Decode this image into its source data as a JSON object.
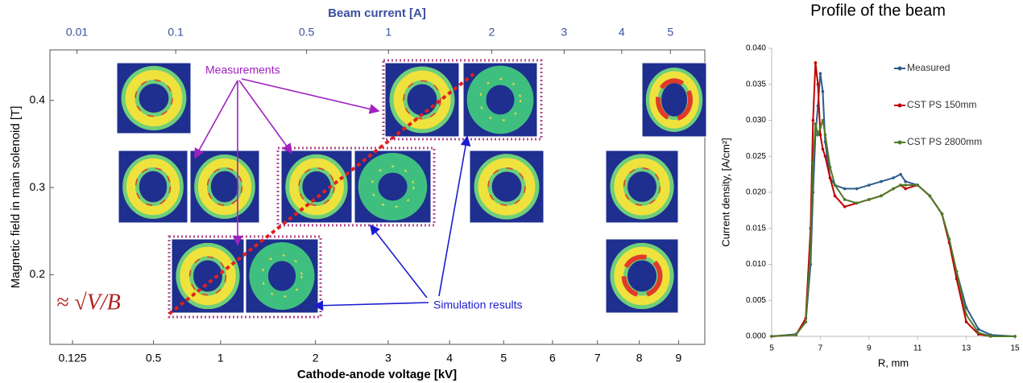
{
  "chart_data": [
    {
      "type": "image",
      "xlabel": "Cathode-anode voltage [kV]",
      "x2label": "Beam current [A]",
      "ylabel": "Magnetic field in main solenoid [T]",
      "xscale": "sqrt",
      "x2scale": "cbrt",
      "xlim": [
        0.065,
        9.7
      ],
      "x2lim": [
        0.0032,
        5.8
      ],
      "ylim": [
        0.12,
        0.458
      ],
      "xticks": [
        0.125,
        0.5,
        1,
        2,
        3,
        4,
        5,
        6,
        7,
        8,
        9
      ],
      "x2ticks": [
        0.01,
        0.1,
        0.5,
        1,
        2,
        3,
        4,
        5
      ],
      "yticks": [
        0.2,
        0.3,
        0.4
      ],
      "annotations": [
        "Measurements",
        "Simulation results",
        "≈ √V/B"
      ]
    },
    {
      "type": "line",
      "title": "Profile of the beam",
      "xlabel": "R, mm",
      "ylabel": "Current density, [A/cm²]",
      "xlim": [
        5,
        15
      ],
      "ylim": [
        0,
        0.04
      ],
      "xticks": [
        5,
        7,
        9,
        11,
        13,
        15
      ],
      "yticks": [
        {
          "value": 0,
          "label": "0.000"
        },
        {
          "value": 0.005,
          "label": "0.005"
        },
        {
          "value": 0.01,
          "label": "0.010"
        },
        {
          "value": 0.015,
          "label": "0.015"
        },
        {
          "value": 0.02,
          "label": "0.020"
        },
        {
          "value": 0.025,
          "label": "0.025"
        },
        {
          "value": 0.03,
          "label": "0.030"
        },
        {
          "value": 0.035,
          "label": "0.035"
        },
        {
          "value": 0.04,
          "label": "0.040"
        }
      ],
      "x": [
        5,
        6,
        6.4,
        6.6,
        6.7,
        6.8,
        6.9,
        7,
        7.1,
        7.2,
        7.4,
        7.6,
        8,
        8.5,
        9,
        9.5,
        10,
        10.3,
        10.5,
        11,
        11.5,
        12,
        12.3,
        12.6,
        13,
        13.5,
        14,
        15
      ],
      "series": [
        {
          "name": "Measured",
          "color": "#2b5d8c",
          "values": [
            0,
            0.0003,
            0.002,
            0.01,
            0.02,
            0.028,
            0.032,
            0.0365,
            0.034,
            0.027,
            0.022,
            0.021,
            0.0205,
            0.0205,
            0.021,
            0.0215,
            0.022,
            0.0225,
            0.0215,
            0.021,
            0.0195,
            0.017,
            0.013,
            0.009,
            0.004,
            0.001,
            0.0002,
            0
          ]
        },
        {
          "name": "CST PS 150mm",
          "color": "#c00000",
          "values": [
            0,
            0.0002,
            0.0025,
            0.015,
            0.03,
            0.038,
            0.035,
            0.028,
            0.026,
            0.025,
            0.022,
            0.0195,
            0.018,
            0.0185,
            0.019,
            0.0195,
            0.0205,
            0.021,
            0.0205,
            0.021,
            0.0195,
            0.017,
            0.013,
            0.008,
            0.002,
            0.0003,
            0,
            0
          ]
        },
        {
          "name": "CST PS 2800mm",
          "color": "#4f7a28",
          "values": [
            0,
            0.0002,
            0.002,
            0.012,
            0.024,
            0.0295,
            0.028,
            0.029,
            0.03,
            0.028,
            0.0235,
            0.021,
            0.019,
            0.0185,
            0.019,
            0.0195,
            0.0205,
            0.021,
            0.021,
            0.021,
            0.0195,
            0.017,
            0.0135,
            0.009,
            0.003,
            0.0005,
            0,
            0
          ]
        }
      ]
    }
  ]
}
